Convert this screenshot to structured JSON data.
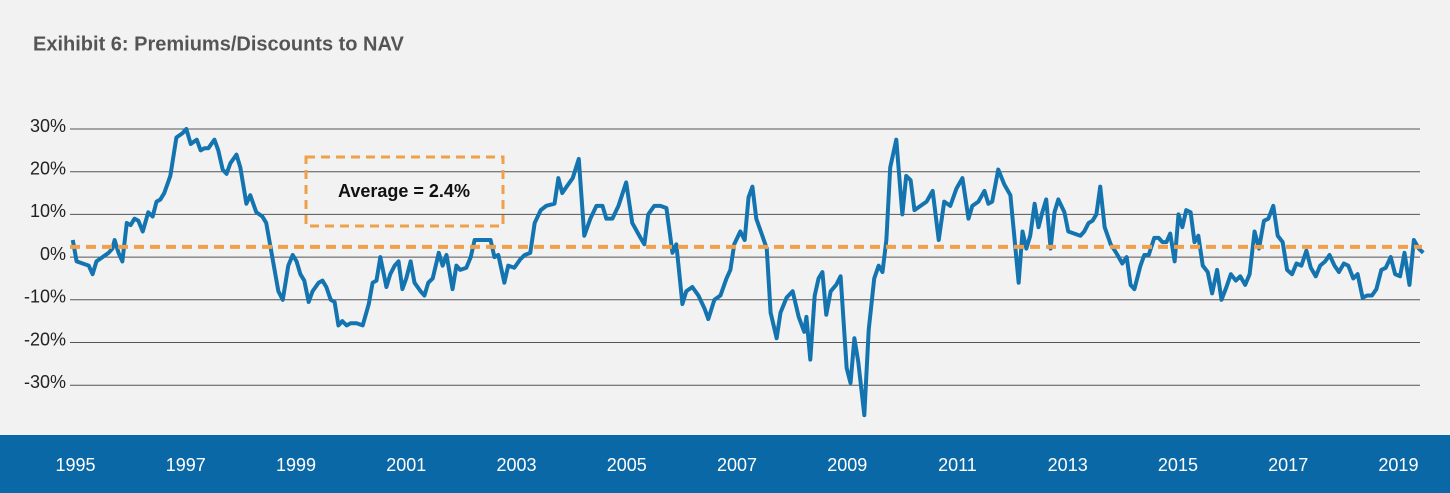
{
  "chart_data": {
    "type": "line",
    "title": "Exihibit 6: Premiums/Discounts to NAV",
    "annotation": "Average = 2.4%",
    "average": 2.4,
    "average_color": "#f0a04b",
    "color": "#1474b0",
    "band_color": "#0a68a6",
    "grid": true,
    "xlim": [
      1994.9,
      2019.5
    ],
    "xticks": [
      1995,
      1997,
      1999,
      2001,
      2003,
      2005,
      2007,
      2009,
      2011,
      2013,
      2015,
      2017,
      2019
    ],
    "ylim": [
      -40,
      30
    ],
    "yticks": [
      {
        "value": -30,
        "label": "-30%"
      },
      {
        "value": -20,
        "label": "-20%"
      },
      {
        "value": -10,
        "label": "-10%"
      },
      {
        "value": 0,
        "label": "0%"
      },
      {
        "value": 10,
        "label": "10%"
      },
      {
        "value": 20,
        "label": "20%"
      },
      {
        "value": 30,
        "label": "30%"
      }
    ],
    "x": [
      1994.95,
      1995.02,
      1995.13,
      1995.24,
      1995.31,
      1995.38,
      1995.49,
      1995.6,
      1995.67,
      1995.71,
      1995.78,
      1995.85,
      1995.93,
      1996.0,
      1996.07,
      1996.14,
      1996.22,
      1996.32,
      1996.4,
      1996.47,
      1996.54,
      1996.61,
      1996.72,
      1996.83,
      1996.94,
      1997.01,
      1997.09,
      1997.2,
      1997.27,
      1997.34,
      1997.41,
      1997.52,
      1997.59,
      1997.67,
      1997.74,
      1997.81,
      1997.92,
      1997.99,
      1998.1,
      1998.17,
      1998.28,
      1998.39,
      1998.46,
      1998.57,
      1998.68,
      1998.76,
      1998.86,
      1998.94,
      1999.01,
      1999.08,
      1999.15,
      1999.23,
      1999.3,
      1999.41,
      1999.48,
      1999.55,
      1999.63,
      1999.7,
      1999.77,
      1999.84,
      1999.92,
      1999.99,
      2000.1,
      2000.21,
      2000.32,
      2000.39,
      2000.46,
      2000.53,
      2000.64,
      2000.71,
      2000.79,
      2000.86,
      2000.93,
      2001.0,
      2001.08,
      2001.15,
      2001.26,
      2001.33,
      2001.4,
      2001.48,
      2001.59,
      2001.66,
      2001.73,
      2001.84,
      2001.91,
      2001.98,
      2002.09,
      2002.17,
      2002.24,
      2002.31,
      2002.42,
      2002.53,
      2002.6,
      2002.67,
      2002.78,
      2002.85,
      2002.96,
      2003.07,
      2003.15,
      2003.25,
      2003.33,
      2003.44,
      2003.54,
      2003.69,
      2003.76,
      2003.83,
      2003.91,
      2004.02,
      2004.13,
      2004.23,
      2004.34,
      2004.45,
      2004.56,
      2004.63,
      2004.74,
      2004.85,
      2004.99,
      2005.1,
      2005.25,
      2005.32,
      2005.39,
      2005.5,
      2005.61,
      2005.72,
      2005.83,
      2005.9,
      2006.01,
      2006.08,
      2006.19,
      2006.3,
      2006.41,
      2006.48,
      2006.59,
      2006.7,
      2006.81,
      2006.88,
      2006.95,
      2007.06,
      2007.14,
      2007.21,
      2007.28,
      2007.35,
      2007.46,
      2007.54,
      2007.61,
      2007.72,
      2007.79,
      2007.9,
      2008.01,
      2008.12,
      2008.22,
      2008.26,
      2008.33,
      2008.41,
      2008.48,
      2008.55,
      2008.62,
      2008.7,
      2008.8,
      2008.88,
      2008.99,
      2009.06,
      2009.13,
      2009.2,
      2009.31,
      2009.39,
      2009.49,
      2009.57,
      2009.64,
      2009.71,
      2009.78,
      2009.89,
      2010.0,
      2010.07,
      2010.15,
      2010.22,
      2010.33,
      2010.44,
      2010.55,
      2010.66,
      2010.76,
      2010.87,
      2010.98,
      2011.09,
      2011.2,
      2011.27,
      2011.38,
      2011.49,
      2011.56,
      2011.63,
      2011.74,
      2011.85,
      2011.96,
      2012.03,
      2012.11,
      2012.18,
      2012.25,
      2012.32,
      2012.4,
      2012.47,
      2012.54,
      2012.61,
      2012.69,
      2012.76,
      2012.83,
      2012.94,
      2013.01,
      2013.12,
      2013.23,
      2013.3,
      2013.38,
      2013.45,
      2013.52,
      2013.59,
      2013.67,
      2013.78,
      2013.88,
      2013.99,
      2014.07,
      2014.14,
      2014.21,
      2014.32,
      2014.39,
      2014.47,
      2014.57,
      2014.65,
      2014.72,
      2014.79,
      2014.86,
      2014.94,
      2015.01,
      2015.08,
      2015.15,
      2015.23,
      2015.3,
      2015.37,
      2015.45,
      2015.54,
      2015.62,
      2015.71,
      2015.79,
      2015.88,
      2015.96,
      2016.05,
      2016.13,
      2016.22,
      2016.3,
      2016.39,
      2016.47,
      2016.56,
      2016.64,
      2016.73,
      2016.81,
      2016.9,
      2016.98,
      2017.07,
      2017.15,
      2017.24,
      2017.33,
      2017.41,
      2017.5,
      2017.58,
      2017.67,
      2017.75,
      2017.84,
      2017.92,
      2018.01,
      2018.09,
      2018.18,
      2018.26,
      2018.35,
      2018.43,
      2018.52,
      2018.6,
      2018.69,
      2018.77,
      2018.86,
      2018.94,
      2019.03,
      2019.11,
      2019.2,
      2019.28,
      2019.37,
      2019.45
    ],
    "values": [
      4,
      -1,
      -1.5,
      -2,
      -4,
      -1,
      0,
      1,
      2,
      4,
      1,
      -1,
      8,
      7.5,
      9,
      8.5,
      6,
      10.5,
      9.5,
      13,
      13.5,
      15,
      19,
      28,
      29,
      30,
      26.5,
      27.5,
      25,
      25.5,
      25.5,
      27.5,
      25,
      20.5,
      19.5,
      22,
      24,
      21,
      12.5,
      14.5,
      10.5,
      9.5,
      8,
      0,
      -8,
      -10,
      -2,
      0.5,
      -1,
      -4,
      -5.5,
      -10.5,
      -8,
      -6,
      -5.5,
      -7,
      -10,
      -10.5,
      -16,
      -15,
      -16,
      -15.5,
      -15.5,
      -16,
      -11,
      -6,
      -5.5,
      0,
      -7,
      -4,
      -2,
      -1,
      -7.5,
      -5,
      -1,
      -6,
      -8,
      -9,
      -6,
      -5,
      1,
      -2,
      0.5,
      -7.5,
      -2,
      -3,
      -2.5,
      0,
      4,
      4,
      4,
      4,
      0,
      0.5,
      -6,
      -2,
      -2.5,
      -0.5,
      0.5,
      1,
      8,
      11,
      12,
      12.5,
      18.5,
      15,
      16.5,
      18.5,
      23,
      5,
      9,
      12,
      12,
      9,
      9,
      12,
      17.5,
      8,
      4.5,
      3,
      10,
      12,
      12,
      11.5,
      1,
      3,
      -11,
      -8,
      -7,
      -9,
      -12,
      -14.5,
      -10,
      -9,
      -5,
      -3,
      3,
      6,
      4,
      14,
      16.5,
      9,
      5,
      2,
      -13,
      -19,
      -13,
      -9.5,
      -8,
      -14,
      -17.5,
      -14,
      -24,
      -9,
      -5,
      -3.5,
      -13.5,
      -8,
      -6.5,
      -4.5,
      -26,
      -29.5,
      -19,
      -24.5,
      -37,
      -17,
      -5,
      -2,
      -3.5,
      4,
      21,
      27.5,
      10,
      19,
      18,
      11,
      12,
      13,
      15.5,
      4,
      13,
      12,
      16,
      18.5,
      9,
      12,
      13,
      15.5,
      12.5,
      13,
      20.5,
      17,
      14.5,
      5,
      -6,
      6,
      2,
      5,
      12.5,
      7,
      10.5,
      13.5,
      2,
      10.5,
      13.5,
      10.5,
      6,
      5.5,
      5,
      6,
      8,
      8.5,
      10,
      16.5,
      7,
      3,
      1,
      -1.5,
      0,
      -6.5,
      -7.5,
      -2,
      0.5,
      0.5,
      4.5,
      4.5,
      3.5,
      3.5,
      5.5,
      -1,
      10,
      7,
      11,
      10.5,
      3.5,
      5,
      -2,
      -3.5,
      -8.5,
      -3,
      -10,
      -7,
      -4,
      -5.5,
      -4.5,
      -6.5,
      -4,
      6,
      2,
      8.5,
      9,
      12,
      5,
      3.5,
      -3,
      -4,
      -1.5,
      -2,
      1.5,
      -2.5,
      -4.5,
      -2,
      -1,
      0.5,
      -2,
      -3.5,
      -1.5,
      -2,
      -5,
      -4,
      -9.5,
      -9,
      -9,
      -7.5,
      -3,
      -2.5,
      0,
      -4,
      -4.5,
      1,
      -6.5,
      4,
      2,
      1
    ]
  }
}
